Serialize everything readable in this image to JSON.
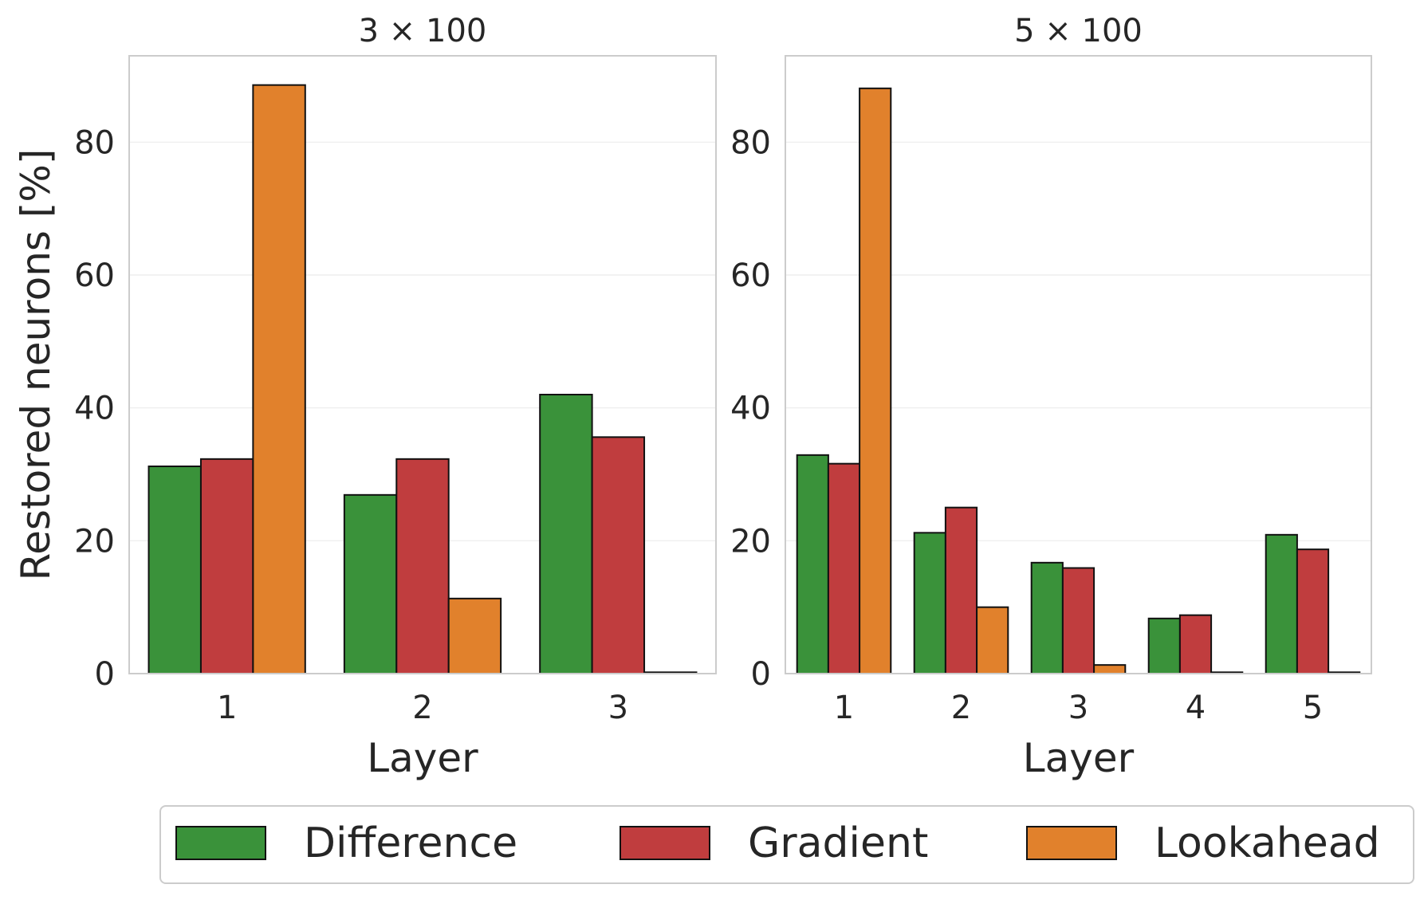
{
  "legend": {
    "placement": "bottom-center",
    "entries": [
      {
        "label": "Difference",
        "color": "#3a923a"
      },
      {
        "label": "Gradient",
        "color": "#c03d3e"
      },
      {
        "label": "Lookahead",
        "color": "#e1812c"
      }
    ]
  },
  "chart_data": [
    {
      "type": "bar",
      "title": "3 × 100",
      "xlabel": "Layer",
      "ylabel": "Restored neurons [%]",
      "categories": [
        "1",
        "2",
        "3"
      ],
      "ylim": [
        0,
        93
      ],
      "yticks": [
        0,
        20,
        40,
        60,
        80
      ],
      "grid": true,
      "series": [
        {
          "name": "Difference",
          "color": "#3a923a",
          "values": [
            31.2,
            26.9,
            42.0
          ]
        },
        {
          "name": "Gradient",
          "color": "#c03d3e",
          "values": [
            32.3,
            32.3,
            35.6
          ]
        },
        {
          "name": "Lookahead",
          "color": "#e1812c",
          "values": [
            88.6,
            11.3,
            0.2
          ]
        }
      ]
    },
    {
      "type": "bar",
      "title": "5 × 100",
      "xlabel": "Layer",
      "ylabel": "",
      "categories": [
        "1",
        "2",
        "3",
        "4",
        "5"
      ],
      "ylim": [
        0,
        93
      ],
      "yticks": [
        0,
        20,
        40,
        60,
        80
      ],
      "grid": true,
      "series": [
        {
          "name": "Difference",
          "color": "#3a923a",
          "values": [
            32.9,
            21.2,
            16.7,
            8.3,
            20.9
          ]
        },
        {
          "name": "Gradient",
          "color": "#c03d3e",
          "values": [
            31.6,
            25.0,
            15.9,
            8.8,
            18.7
          ]
        },
        {
          "name": "Lookahead",
          "color": "#e1812c",
          "values": [
            88.1,
            10.0,
            1.3,
            0.2,
            0.2
          ]
        }
      ]
    }
  ]
}
